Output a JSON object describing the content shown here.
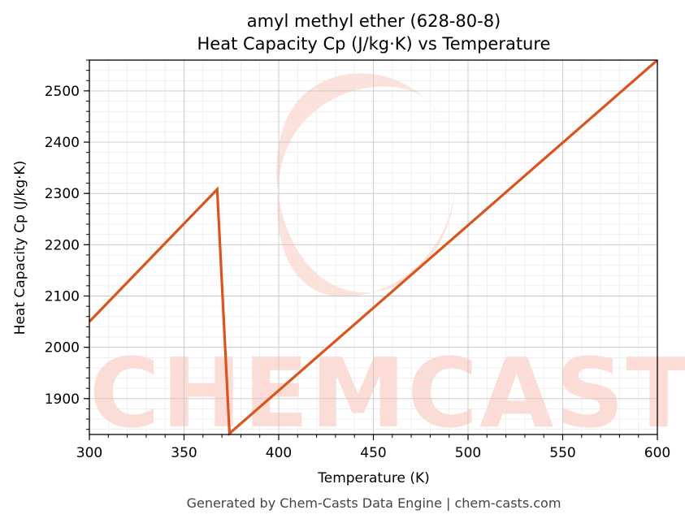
{
  "chart_data": {
    "type": "line",
    "title_line1": "amyl methyl ether (628-80-8)",
    "title_line2": "Heat Capacity Cp (J/kg·K) vs Temperature",
    "xlabel": "Temperature (K)",
    "ylabel": "Heat Capacity Cp (J/kg·K)",
    "xlim": [
      300,
      600
    ],
    "ylim": [
      1830,
      2560
    ],
    "x_ticks": [
      300,
      350,
      400,
      450,
      500,
      550,
      600
    ],
    "y_ticks": [
      1900,
      2000,
      2100,
      2200,
      2300,
      2400,
      2500
    ],
    "grid": true,
    "series": [
      {
        "color": "#d9541e",
        "points": [
          [
            300,
            2050
          ],
          [
            367.5,
            2308
          ],
          [
            374,
            1832
          ],
          [
            600,
            2560
          ]
        ]
      }
    ]
  },
  "watermark": {
    "text": "CHEMCASTS",
    "color": "#fddcd5"
  },
  "footer": "Generated by Chem-Casts Data Engine | chem-casts.com"
}
